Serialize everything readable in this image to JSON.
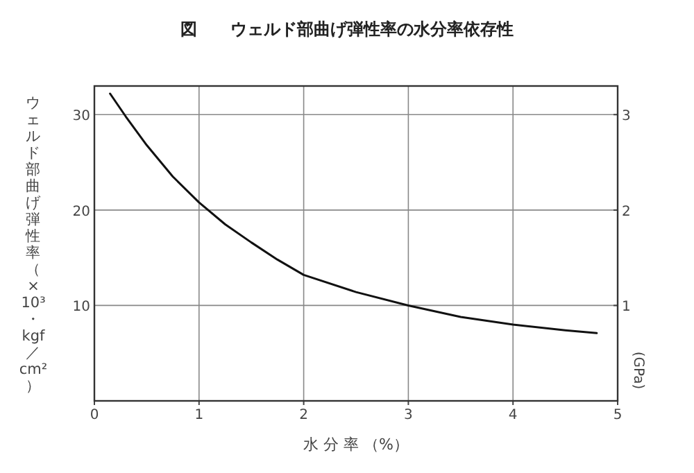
{
  "chart_data": {
    "type": "line",
    "title": "図　　ウェルド部曲げ弾性率の水分率依存性",
    "xlabel": "水 分 率 （%）",
    "ylabel": "ウェルド部曲げ弾性率（×10³・kgf／cm²）",
    "y2label": "(GPa)",
    "series": [
      {
        "color": "#111111",
        "x": [
          0.15,
          0.3,
          0.5,
          0.75,
          1,
          1.25,
          1.5,
          1.75,
          2,
          2.5,
          3,
          3.5,
          4,
          4.5,
          4.8
        ],
        "values": [
          32.2,
          29.8,
          26.8,
          23.5,
          20.8,
          18.5,
          16.6,
          14.8,
          13.2,
          11.4,
          10,
          8.8,
          8,
          7.4,
          7.1
        ]
      }
    ],
    "xlim": [
      0,
      5
    ],
    "xticks": [
      0,
      1,
      2,
      3,
      4,
      5
    ],
    "ylim": [
      0,
      33
    ],
    "yticks": [
      {
        "value": 0,
        "label": null
      },
      10,
      20,
      30
    ],
    "y2lim": [
      0,
      3.3
    ],
    "y2ticks": [
      1,
      2,
      3
    ],
    "grid": true,
    "marker": "none",
    "line_style": "solid"
  }
}
